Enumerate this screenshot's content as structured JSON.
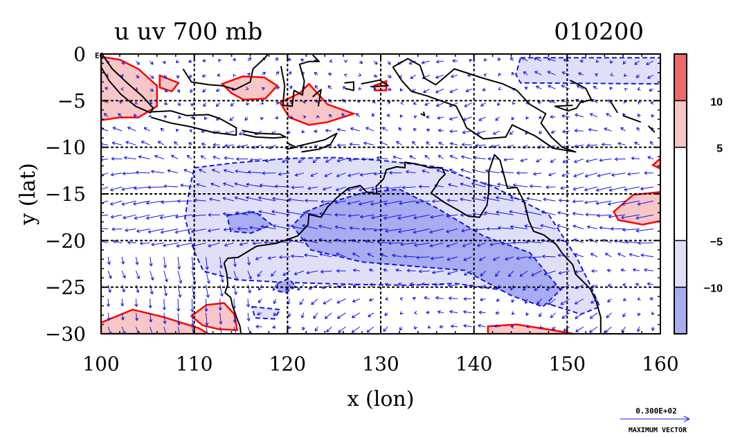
{
  "chart_data": {
    "type": "heatmap",
    "title": "u uv 700 mb",
    "time_label": "010200",
    "xlabel": "x (lon)",
    "ylabel": "y (lat)",
    "xlim": [
      100,
      160
    ],
    "ylim": [
      -30,
      0
    ],
    "x_ticks": [
      100,
      110,
      120,
      130,
      140,
      150,
      160
    ],
    "y_ticks": [
      0,
      -5,
      -10,
      -15,
      -20,
      -25,
      -30
    ],
    "x_tick_labels": [
      "100",
      "110",
      "120",
      "130",
      "140",
      "150",
      "160"
    ],
    "y_tick_labels": [
      "0",
      "−5",
      "−10",
      "−15",
      "−20",
      "−25",
      "−30"
    ],
    "y_tick_extra": "EQ",
    "grid": true,
    "colorbar": {
      "placement": "right",
      "levels": [
        -15,
        -10,
        -5,
        5,
        10,
        15
      ],
      "tick_values": [
        10,
        5,
        -5,
        -10
      ],
      "tick_labels": [
        "10",
        "5",
        "−5",
        "−10"
      ],
      "colors": [
        "#ee6a6a",
        "#f7c7c7",
        "#ffffff",
        "#dfe0f8",
        "#a8acf0"
      ]
    },
    "colors": {
      "positive_contour": "#ff0000",
      "negative_contour": "#1515dd",
      "vector": "#1414e6",
      "coast": "#000000",
      "grid": "#000000"
    },
    "regions": [
      {
        "sign": "positive",
        "level": 2,
        "points": [
          [
            100,
            -0.3
          ],
          [
            101,
            -1.2
          ],
          [
            103,
            -2.8
          ],
          [
            104,
            -3.5
          ],
          [
            104,
            -5.2
          ],
          [
            102,
            -5.8
          ],
          [
            100,
            -6.3
          ]
        ]
      },
      {
        "sign": "positive",
        "level": 1,
        "points": [
          [
            100,
            -0.3
          ],
          [
            102,
            -0.6
          ],
          [
            104,
            -1.6
          ],
          [
            106,
            -3.4
          ],
          [
            106,
            -5.6
          ],
          [
            104,
            -6.8
          ],
          [
            102,
            -6.8
          ],
          [
            100,
            -7.1
          ]
        ]
      },
      {
        "sign": "positive",
        "level": 1,
        "points": [
          [
            106.3,
            -2.3
          ],
          [
            108.3,
            -3.1
          ],
          [
            107.6,
            -4.0
          ],
          [
            106.3,
            -3.6
          ]
        ]
      },
      {
        "sign": "positive",
        "level": 1,
        "points": [
          [
            113,
            -3.2
          ],
          [
            115.2,
            -2.4
          ],
          [
            117.5,
            -2.5
          ],
          [
            118.9,
            -3.4
          ],
          [
            117.6,
            -4.8
          ],
          [
            115.3,
            -4.9
          ],
          [
            114,
            -4.2
          ]
        ]
      },
      {
        "sign": "positive",
        "level": 1,
        "points": [
          [
            119.2,
            -5.2
          ],
          [
            121.3,
            -4.2
          ],
          [
            122.3,
            -3.2
          ],
          [
            124.3,
            -5.4
          ],
          [
            127.1,
            -6.4
          ],
          [
            124.3,
            -7.3
          ],
          [
            122.3,
            -7.6
          ],
          [
            120.2,
            -6.8
          ]
        ]
      },
      {
        "sign": "positive",
        "level": 1,
        "points": [
          [
            129.3,
            -3.4
          ],
          [
            130.6,
            -2.9
          ],
          [
            130.6,
            -3.9
          ],
          [
            129.4,
            -3.9
          ]
        ]
      },
      {
        "sign": "positive",
        "level": 1,
        "points": [
          [
            100,
            -28.8
          ],
          [
            103.4,
            -27.4
          ],
          [
            106.7,
            -28.2
          ],
          [
            110.5,
            -29.4
          ],
          [
            111.5,
            -30
          ],
          [
            100,
            -30
          ]
        ]
      },
      {
        "sign": "positive",
        "level": 1,
        "points": [
          [
            109.7,
            -28.1
          ],
          [
            111.3,
            -26.9
          ],
          [
            113.2,
            -26.7
          ],
          [
            114.3,
            -27.9
          ],
          [
            114.6,
            -29.6
          ],
          [
            112.6,
            -29.5
          ],
          [
            110.9,
            -29.1
          ]
        ]
      },
      {
        "sign": "positive",
        "level": 1,
        "points": [
          [
            141.5,
            -29.2
          ],
          [
            144.6,
            -29.0
          ],
          [
            148.4,
            -29.6
          ],
          [
            150.7,
            -30
          ],
          [
            141.5,
            -30
          ]
        ]
      },
      {
        "sign": "positive",
        "level": 1,
        "points": [
          [
            155,
            -16.9
          ],
          [
            157.1,
            -15.1
          ],
          [
            160,
            -14.8
          ],
          [
            160,
            -17.9
          ],
          [
            158.1,
            -18.3
          ],
          [
            155.5,
            -17.8
          ]
        ]
      },
      {
        "sign": "positive",
        "level": 1,
        "points": [
          [
            159.2,
            -11.9
          ],
          [
            160,
            -11.2
          ],
          [
            160,
            -12.3
          ]
        ]
      },
      {
        "sign": "negative",
        "level": 1,
        "points": [
          [
            145,
            -0.4
          ],
          [
            160,
            -0.4
          ],
          [
            160,
            -3.2
          ],
          [
            145,
            -3.1
          ],
          [
            144.5,
            -2.2
          ]
        ]
      },
      {
        "sign": "negative",
        "level": 1,
        "points": [
          [
            110,
            -12.2
          ],
          [
            114,
            -11.7
          ],
          [
            120,
            -11.2
          ],
          [
            125,
            -11.1
          ],
          [
            130,
            -11.4
          ],
          [
            136,
            -12.1
          ],
          [
            142,
            -14.2
          ],
          [
            148,
            -17.2
          ],
          [
            151,
            -21.8
          ],
          [
            152.5,
            -24.8
          ],
          [
            153.5,
            -27.1
          ],
          [
            151.5,
            -27.9
          ],
          [
            148,
            -26.8
          ],
          [
            143,
            -25.3
          ],
          [
            138,
            -24.6
          ],
          [
            133,
            -24.8
          ],
          [
            127,
            -24.7
          ],
          [
            120,
            -24.5
          ],
          [
            114.5,
            -24.2
          ],
          [
            111,
            -23.3
          ],
          [
            110,
            -21.2
          ],
          [
            109,
            -17.6
          ],
          [
            109.5,
            -14.4
          ]
        ]
      },
      {
        "sign": "negative",
        "level": 2,
        "points": [
          [
            124,
            -16.1
          ],
          [
            128,
            -14.9
          ],
          [
            132,
            -14.5
          ],
          [
            136,
            -16.5
          ],
          [
            141,
            -19.5
          ],
          [
            146,
            -21.3
          ],
          [
            149.3,
            -25.3
          ],
          [
            147.4,
            -27.1
          ],
          [
            144,
            -25.9
          ],
          [
            139,
            -23.2
          ],
          [
            134,
            -22.8
          ],
          [
            128,
            -22.3
          ],
          [
            122.5,
            -21.0
          ],
          [
            120.5,
            -18.4
          ],
          [
            122,
            -16.9
          ]
        ]
      },
      {
        "sign": "negative",
        "level": 2,
        "points": [
          [
            113.5,
            -17.3
          ],
          [
            116.5,
            -16.9
          ],
          [
            118.3,
            -18.3
          ],
          [
            116.1,
            -19.2
          ],
          [
            113.9,
            -19.0
          ]
        ]
      },
      {
        "sign": "negative",
        "level": 2,
        "points": [
          [
            118.9,
            -24.6
          ],
          [
            120.1,
            -24.1
          ],
          [
            120.9,
            -24.9
          ],
          [
            119.8,
            -25.6
          ],
          [
            118.9,
            -25.4
          ]
        ]
      },
      {
        "sign": "negative",
        "level": 1,
        "points": [
          [
            116.2,
            -27.1
          ],
          [
            119.2,
            -27.4
          ],
          [
            118.6,
            -28.4
          ],
          [
            116.5,
            -28.3
          ]
        ]
      }
    ],
    "coastlines": [
      [
        [
          113.2,
          -22.4
        ],
        [
          113.6,
          -21.9
        ],
        [
          114.7,
          -21.8
        ],
        [
          116.7,
          -20.6
        ],
        [
          118.8,
          -20.3
        ],
        [
          121.1,
          -19.5
        ],
        [
          122.2,
          -18.3
        ],
        [
          122.3,
          -17.2
        ],
        [
          123.6,
          -17.5
        ],
        [
          124.3,
          -16.4
        ],
        [
          125.2,
          -15.5
        ],
        [
          126.5,
          -14.4
        ],
        [
          127.8,
          -14.1
        ],
        [
          128.5,
          -14.8
        ],
        [
          129.6,
          -15.0
        ],
        [
          129.5,
          -14.2
        ],
        [
          130.3,
          -13.4
        ],
        [
          130.6,
          -12.4
        ],
        [
          131.7,
          -12.1
        ],
        [
          132.6,
          -12.2
        ],
        [
          132.6,
          -11.6
        ],
        [
          133.9,
          -11.8
        ],
        [
          135.3,
          -12.2
        ],
        [
          136.6,
          -12.2
        ],
        [
          136.9,
          -12.9
        ],
        [
          136.3,
          -13.5
        ],
        [
          135.9,
          -14.2
        ],
        [
          135.4,
          -14.9
        ],
        [
          136.8,
          -15.9
        ],
        [
          138.4,
          -16.8
        ],
        [
          139.4,
          -17.4
        ],
        [
          140.6,
          -17.5
        ],
        [
          141.4,
          -16.2
        ],
        [
          141.6,
          -14.6
        ],
        [
          141.6,
          -12.6
        ],
        [
          142.2,
          -10.8
        ],
        [
          142.8,
          -11.4
        ],
        [
          143.6,
          -14.4
        ],
        [
          144.6,
          -14.3
        ],
        [
          145.4,
          -15.9
        ],
        [
          145.9,
          -17.9
        ],
        [
          146.4,
          -19.0
        ],
        [
          147.5,
          -19.4
        ],
        [
          148.8,
          -20.4
        ],
        [
          149.5,
          -21.4
        ],
        [
          150.6,
          -22.6
        ],
        [
          150.9,
          -23.6
        ],
        [
          152.5,
          -25.2
        ],
        [
          153.1,
          -26.5
        ],
        [
          153.6,
          -28.2
        ],
        [
          153.6,
          -29.9
        ]
      ],
      [
        [
          113.2,
          -22.4
        ],
        [
          113.5,
          -23.6
        ],
        [
          113.6,
          -24.7
        ],
        [
          113.3,
          -25.6
        ],
        [
          113.9,
          -26.1
        ],
        [
          114.1,
          -27.0
        ],
        [
          114.6,
          -28.4
        ],
        [
          114.9,
          -29.2
        ],
        [
          115.0,
          -30
        ]
      ],
      [
        [
          100.1,
          0
        ],
        [
          101.2,
          -1.6
        ],
        [
          102.8,
          -3.1
        ],
        [
          104.4,
          -4.5
        ],
        [
          105.6,
          -5.8
        ],
        [
          105.3,
          -6.3
        ],
        [
          103.7,
          -5.6
        ],
        [
          102.1,
          -4.3
        ],
        [
          100.9,
          -2.9
        ],
        [
          100.0,
          -1.4
        ]
      ],
      [
        [
          105.4,
          -6.2
        ],
        [
          107.5,
          -6.1
        ],
        [
          109.2,
          -6.6
        ],
        [
          111.5,
          -6.5
        ],
        [
          112.7,
          -6.9
        ],
        [
          114.5,
          -7.9
        ],
        [
          114.5,
          -8.7
        ],
        [
          112.0,
          -8.4
        ],
        [
          109.6,
          -7.8
        ],
        [
          107.5,
          -7.4
        ],
        [
          105.4,
          -6.8
        ]
      ],
      [
        [
          108.8,
          -1.6
        ],
        [
          109.7,
          -3.0
        ],
        [
          111.6,
          -3.3
        ],
        [
          113.0,
          -3.4
        ],
        [
          114.4,
          -3.8
        ],
        [
          116.0,
          -3.0
        ],
        [
          116.3,
          -1.6
        ],
        [
          117.6,
          -0.4
        ],
        [
          117.9,
          0
        ]
      ],
      [
        [
          115.1,
          -8.2
        ],
        [
          116.7,
          -8.5
        ],
        [
          119.2,
          -8.6
        ],
        [
          119.8,
          -8.9
        ],
        [
          118.5,
          -9.0
        ],
        [
          116.6,
          -8.9
        ],
        [
          115.2,
          -8.6
        ]
      ],
      [
        [
          119.9,
          -9.5
        ],
        [
          120.9,
          -10.0
        ],
        [
          119.9,
          -10.2
        ]
      ],
      [
        [
          121.0,
          -9.9
        ],
        [
          124.0,
          -9.2
        ],
        [
          125.3,
          -8.5
        ],
        [
          124.6,
          -9.7
        ],
        [
          123.4,
          -10.2
        ],
        [
          121.5,
          -10.5
        ]
      ],
      [
        [
          119.3,
          -1.3
        ],
        [
          119.7,
          -3.4
        ],
        [
          119.5,
          -5.5
        ],
        [
          120.5,
          -5.6
        ],
        [
          120.7,
          -3.9
        ],
        [
          121.6,
          -4.4
        ],
        [
          121.8,
          -2.9
        ],
        [
          121.3,
          -1.1
        ],
        [
          122.3,
          -0.8
        ],
        [
          123.4,
          -0.8
        ],
        [
          122.7,
          -0.1
        ]
      ],
      [
        [
          122.7,
          -4.6
        ],
        [
          123.6,
          -3.8
        ],
        [
          123.3,
          -5.6
        ]
      ],
      [
        [
          126.1,
          -3.1
        ],
        [
          127.1,
          -3.0
        ],
        [
          127.1,
          -3.9
        ],
        [
          126.2,
          -3.7
        ]
      ],
      [
        [
          127.9,
          -3.2
        ],
        [
          129.9,
          -2.8
        ],
        [
          130.8,
          -3.4
        ],
        [
          128.9,
          -3.5
        ]
      ],
      [
        [
          131.3,
          -1.4
        ],
        [
          132.9,
          -0.5
        ],
        [
          134.2,
          -1.2
        ],
        [
          134.7,
          -2.6
        ],
        [
          135.9,
          -3.3
        ],
        [
          137.9,
          -1.6
        ],
        [
          141.0,
          -2.6
        ],
        [
          143.1,
          -3.2
        ],
        [
          144.6,
          -3.9
        ],
        [
          146.0,
          -5.4
        ],
        [
          147.7,
          -6.4
        ],
        [
          147.2,
          -7.4
        ],
        [
          148.3,
          -8.9
        ],
        [
          149.5,
          -10.0
        ],
        [
          150.9,
          -10.5
        ],
        [
          148.5,
          -10.1
        ],
        [
          146.6,
          -8.8
        ],
        [
          144.1,
          -7.6
        ],
        [
          143.4,
          -8.9
        ],
        [
          141.0,
          -9.1
        ],
        [
          139.2,
          -7.9
        ],
        [
          138.9,
          -7.2
        ],
        [
          138.1,
          -5.6
        ],
        [
          135.0,
          -4.5
        ],
        [
          133.3,
          -4.0
        ],
        [
          132.3,
          -2.9
        ],
        [
          131.3,
          -1.4
        ]
      ],
      [
        [
          134.6,
          -6.2
        ],
        [
          134.7,
          -6.6
        ],
        [
          134.3,
          -6.4
        ]
      ],
      [
        [
          150.3,
          -2.8
        ],
        [
          152.0,
          -3.7
        ],
        [
          152.6,
          -4.9
        ],
        [
          151.4,
          -5.2
        ],
        [
          151.0,
          -5.8
        ],
        [
          150.1,
          -6.1
        ],
        [
          148.7,
          -5.6
        ],
        [
          150.6,
          -5.5
        ]
      ],
      [
        [
          154.6,
          -5.0
        ],
        [
          155.4,
          -6.3
        ]
      ],
      [
        [
          156.0,
          -6.6
        ],
        [
          157.9,
          -7.3
        ]
      ],
      [
        [
          158.7,
          -7.7
        ],
        [
          159.4,
          -8.4
        ]
      ]
    ],
    "vector_field": {
      "spacing_deg": 1.5,
      "units": "m/s",
      "max_vector": "0.300E+02",
      "max_vector_label": "MAXIMUM VECTOR"
    }
  }
}
